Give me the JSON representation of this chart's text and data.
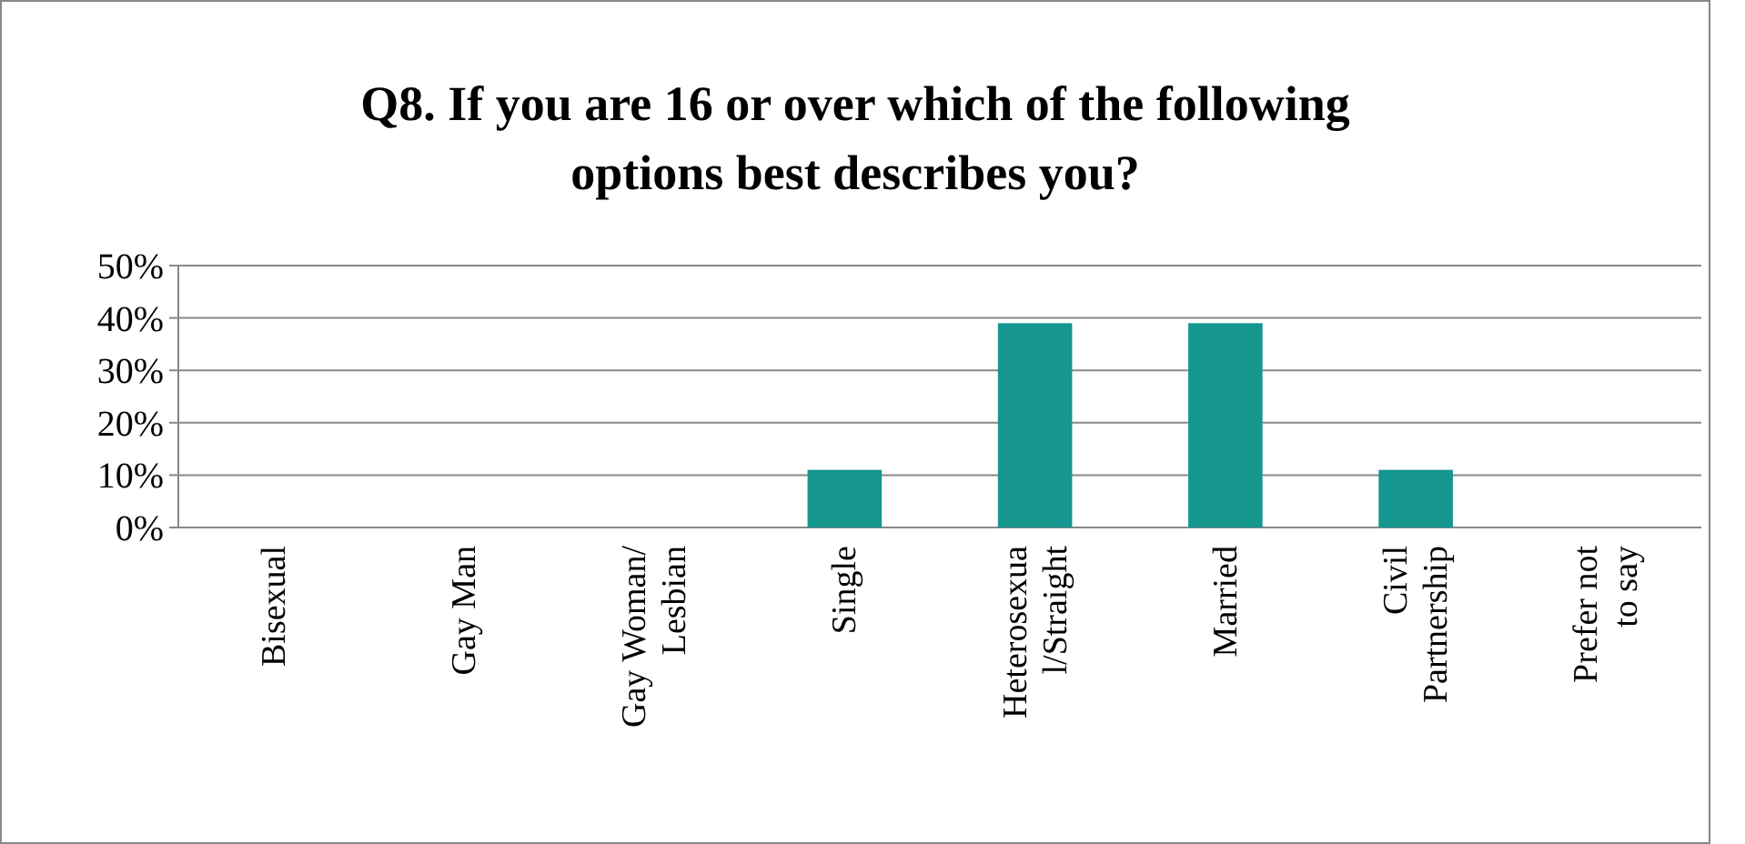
{
  "chart_data": {
    "type": "bar",
    "title": "Q8. If you are 16 or over which of the following options best describes you?",
    "categories": [
      "Bisexual",
      "Gay Man",
      "Gay Woman/ Lesbian",
      "Single",
      "Heterosexual/Straight",
      "Married",
      "Civil Partnership",
      "Prefer not to say"
    ],
    "values": [
      0,
      0,
      0,
      11,
      39,
      39,
      11,
      0
    ],
    "color": "#15968f",
    "ylim": [
      0,
      50
    ],
    "yticks": [
      {
        "value": 0,
        "label": "0%"
      },
      {
        "value": 10,
        "label": "10%"
      },
      {
        "value": 20,
        "label": "20%"
      },
      {
        "value": 30,
        "label": "30%"
      },
      {
        "value": 40,
        "label": "40%"
      },
      {
        "value": 50,
        "label": "50%"
      }
    ],
    "grid": "y"
  }
}
